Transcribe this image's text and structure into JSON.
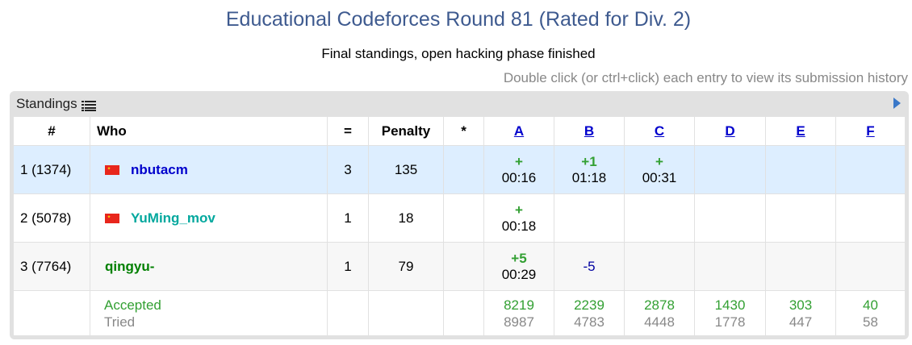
{
  "contest": {
    "title": "Educational Codeforces Round 81 (Rated for Div. 2)",
    "subtitle": "Final standings, open hacking phase finished",
    "hint": "Double click (or ctrl+click) each entry to view its submission history"
  },
  "panel": {
    "label": "Standings",
    "list_icon": "list-icon",
    "next_icon": "arrow-right-icon"
  },
  "headers": {
    "rank": "#",
    "who": "Who",
    "solved": "=",
    "penalty": "Penalty",
    "hacks": "*",
    "problems": [
      "A",
      "B",
      "C",
      "D",
      "E",
      "F"
    ]
  },
  "rows": [
    {
      "rank": "1 (1374)",
      "handle": "nbutacm",
      "flag": "china-flag",
      "solved": "3",
      "penalty": "135",
      "hacks": "",
      "cells": [
        {
          "result": "+",
          "time": "00:16"
        },
        {
          "result": "+1",
          "time": "01:18"
        },
        {
          "result": "+",
          "time": "00:31"
        },
        {
          "result": "",
          "time": ""
        },
        {
          "result": "",
          "time": ""
        },
        {
          "result": "",
          "time": ""
        }
      ]
    },
    {
      "rank": "2 (5078)",
      "handle": "YuMing_mov",
      "flag": "china-flag",
      "solved": "1",
      "penalty": "18",
      "hacks": "",
      "cells": [
        {
          "result": "+",
          "time": "00:18"
        },
        {
          "result": "",
          "time": ""
        },
        {
          "result": "",
          "time": ""
        },
        {
          "result": "",
          "time": ""
        },
        {
          "result": "",
          "time": ""
        },
        {
          "result": "",
          "time": ""
        }
      ]
    },
    {
      "rank": "3 (7764)",
      "handle": "qingyu-",
      "flag": "",
      "solved": "1",
      "penalty": "79",
      "hacks": "",
      "cells": [
        {
          "result": "+5",
          "time": "00:29"
        },
        {
          "result": "-5",
          "time": ""
        },
        {
          "result": "",
          "time": ""
        },
        {
          "result": "",
          "time": ""
        },
        {
          "result": "",
          "time": ""
        },
        {
          "result": "",
          "time": ""
        }
      ]
    }
  ],
  "stats": {
    "accepted_label": "Accepted",
    "tried_label": "Tried",
    "accepted": [
      "8219",
      "2239",
      "2878",
      "1430",
      "303",
      "40"
    ],
    "tried": [
      "8987",
      "4783",
      "4448",
      "1778",
      "447",
      "58"
    ]
  },
  "colors": {
    "title": "#3e5a8f",
    "accepted": "#33a033",
    "rejected": "#0000a0",
    "highlight_row": "#ddeeff",
    "panel": "#e1e1e1"
  }
}
